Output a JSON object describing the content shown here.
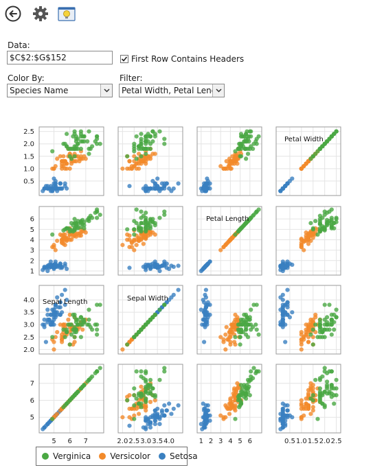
{
  "toolbar": {
    "back_icon": "back-arrow-icon",
    "settings_icon": "gear-icon",
    "insights_icon": "lightbulb-icon"
  },
  "form": {
    "data_label": "Data:",
    "data_value": "$C$2:$G$152",
    "first_row_headers_label": "First Row Contains Headers",
    "first_row_headers_checked": true,
    "color_by_label": "Color By:",
    "color_by_value": "Species Name",
    "filter_label": "Filter:",
    "filter_value": "Petal Width, Petal Length"
  },
  "colors": {
    "Verginica": "#4aa843",
    "Versicolor": "#f28a2a",
    "Setosa": "#3a80c0"
  },
  "chart_data": {
    "type": "scatter",
    "variables": [
      "Sepal Length",
      "Sepal Width",
      "Petal Length",
      "Petal Width"
    ],
    "ranges": {
      "Sepal Length": [
        4.2,
        8.0
      ],
      "Sepal Width": [
        1.9,
        4.5
      ],
      "Petal Length": [
        0.8,
        7.0
      ],
      "Petal Width": [
        0.0,
        2.6
      ]
    },
    "ticks": {
      "Sepal Length": [
        5,
        6,
        7
      ],
      "Sepal Width": [
        2.0,
        2.5,
        3.0,
        3.5,
        4.0
      ],
      "Petal Length": [
        1,
        2,
        3,
        4,
        5,
        6
      ],
      "Petal Width": [
        0.5,
        1.0,
        1.5,
        2.0,
        2.5
      ]
    },
    "tick_labels": {
      "Sepal Length": [
        "5",
        "6",
        "7"
      ],
      "Sepal Width": [
        "2.0",
        "2.5",
        "3.0",
        "3.5",
        "4.0"
      ],
      "Petal Length": [
        "1",
        "2",
        "3",
        "4",
        "5",
        "6"
      ],
      "Petal Width": [
        "0.5",
        "1.0",
        "1.5",
        "2.0",
        "2.5"
      ]
    },
    "grid": true,
    "legend_position": "bottom-left",
    "series": [
      {
        "name": "Verginica",
        "sepal_length": [
          6.3,
          5.8,
          7.1,
          6.3,
          6.5,
          7.6,
          4.9,
          7.3,
          6.7,
          7.2,
          6.5,
          6.4,
          6.8,
          5.7,
          5.8,
          6.4,
          6.5,
          7.7,
          7.7,
          6.0,
          6.9,
          5.6,
          7.7,
          6.3,
          6.7,
          7.2,
          6.2,
          6.1,
          6.4,
          7.2,
          7.4,
          7.9,
          6.4,
          6.3,
          6.1,
          7.7,
          6.3,
          6.4,
          6.0,
          6.9,
          6.7,
          6.9,
          5.8,
          6.8,
          6.7,
          6.7,
          6.3,
          6.5,
          6.2,
          5.9
        ],
        "sepal_width": [
          3.3,
          2.7,
          3.0,
          2.9,
          3.0,
          3.0,
          2.5,
          2.9,
          2.5,
          3.6,
          3.2,
          2.7,
          3.0,
          2.5,
          2.8,
          3.2,
          3.0,
          3.8,
          2.6,
          2.2,
          3.2,
          2.8,
          2.8,
          2.7,
          3.3,
          3.2,
          2.8,
          3.0,
          2.8,
          3.0,
          2.8,
          3.8,
          2.8,
          2.8,
          2.6,
          3.0,
          3.4,
          3.1,
          3.0,
          3.1,
          3.1,
          3.1,
          2.7,
          3.2,
          3.3,
          3.0,
          2.5,
          3.0,
          3.4,
          3.0
        ],
        "petal_length": [
          6.0,
          5.1,
          5.9,
          5.6,
          5.8,
          6.6,
          4.5,
          6.3,
          5.8,
          6.1,
          5.1,
          5.3,
          5.5,
          5.0,
          5.1,
          5.3,
          5.5,
          6.7,
          6.9,
          5.0,
          5.7,
          4.9,
          6.7,
          4.9,
          5.7,
          6.0,
          4.8,
          4.9,
          5.6,
          5.8,
          6.1,
          6.4,
          5.6,
          5.1,
          5.6,
          6.1,
          5.6,
          5.5,
          4.8,
          5.4,
          5.6,
          5.1,
          5.1,
          5.9,
          5.7,
          5.2,
          5.0,
          5.2,
          5.4,
          5.1
        ],
        "petal_width": [
          2.5,
          1.9,
          2.1,
          1.8,
          2.2,
          2.1,
          1.7,
          1.8,
          1.8,
          2.5,
          2.0,
          1.9,
          2.1,
          2.0,
          2.4,
          2.3,
          1.8,
          2.2,
          2.3,
          1.5,
          2.3,
          2.0,
          2.0,
          1.8,
          2.1,
          1.8,
          1.8,
          1.8,
          2.1,
          1.6,
          1.9,
          2.0,
          2.2,
          1.5,
          1.4,
          2.3,
          2.4,
          1.8,
          1.8,
          2.1,
          2.4,
          2.3,
          1.9,
          2.3,
          2.5,
          2.3,
          1.9,
          2.0,
          2.3,
          1.8
        ]
      },
      {
        "name": "Versicolor",
        "sepal_length": [
          7.0,
          6.4,
          6.9,
          5.5,
          6.5,
          5.7,
          6.3,
          4.9,
          6.6,
          5.2,
          5.0,
          5.9,
          6.0,
          6.1,
          5.6,
          6.7,
          5.6,
          5.8,
          6.2,
          5.6,
          5.9,
          6.1,
          6.3,
          6.1,
          6.4,
          6.6,
          6.8,
          6.7,
          6.0,
          5.7,
          5.5,
          5.5,
          5.8,
          6.0,
          5.4,
          6.0,
          6.7,
          6.3,
          5.6,
          5.5,
          5.5,
          6.1,
          5.8,
          5.0,
          5.6,
          5.7,
          5.7,
          6.2,
          5.1,
          5.7
        ],
        "sepal_width": [
          3.2,
          3.2,
          3.1,
          2.3,
          2.8,
          2.8,
          3.3,
          2.4,
          2.9,
          2.7,
          2.0,
          3.0,
          2.2,
          2.9,
          2.9,
          3.1,
          3.0,
          2.7,
          2.2,
          2.5,
          3.2,
          2.8,
          2.5,
          2.8,
          2.9,
          3.0,
          2.8,
          3.0,
          2.9,
          2.6,
          2.4,
          2.4,
          2.7,
          2.7,
          3.0,
          3.4,
          3.1,
          2.3,
          3.0,
          2.5,
          2.6,
          3.0,
          2.6,
          2.3,
          2.7,
          3.0,
          2.9,
          2.9,
          2.5,
          2.8
        ],
        "petal_length": [
          4.7,
          4.5,
          4.9,
          4.0,
          4.6,
          4.5,
          4.7,
          3.3,
          4.6,
          3.9,
          3.5,
          4.2,
          4.0,
          4.7,
          3.6,
          4.4,
          4.5,
          4.1,
          4.5,
          3.9,
          4.8,
          4.0,
          4.9,
          4.7,
          4.3,
          4.4,
          4.8,
          5.0,
          4.5,
          3.5,
          3.8,
          3.7,
          3.9,
          5.1,
          4.5,
          4.5,
          4.7,
          4.4,
          4.1,
          4.0,
          4.4,
          4.6,
          4.0,
          3.3,
          4.2,
          4.2,
          4.2,
          4.3,
          3.0,
          4.1
        ],
        "petal_width": [
          1.4,
          1.5,
          1.5,
          1.3,
          1.5,
          1.3,
          1.6,
          1.0,
          1.3,
          1.4,
          1.0,
          1.5,
          1.0,
          1.4,
          1.3,
          1.4,
          1.5,
          1.0,
          1.5,
          1.1,
          1.8,
          1.3,
          1.5,
          1.2,
          1.3,
          1.4,
          1.4,
          1.7,
          1.5,
          1.0,
          1.1,
          1.0,
          1.2,
          1.6,
          1.5,
          1.6,
          1.5,
          1.3,
          1.3,
          1.3,
          1.2,
          1.4,
          1.2,
          1.0,
          1.3,
          1.2,
          1.3,
          1.3,
          1.1,
          1.3
        ]
      },
      {
        "name": "Setosa",
        "sepal_length": [
          5.1,
          4.9,
          4.7,
          4.6,
          5.0,
          5.4,
          4.6,
          5.0,
          4.4,
          4.9,
          5.4,
          4.8,
          4.8,
          4.3,
          5.8,
          5.7,
          5.4,
          5.1,
          5.7,
          5.1,
          5.4,
          5.1,
          4.6,
          5.1,
          4.8,
          5.0,
          5.0,
          5.2,
          5.2,
          4.7,
          4.8,
          5.4,
          5.2,
          5.5,
          4.9,
          5.0,
          5.5,
          4.9,
          4.4,
          5.1,
          5.0,
          4.5,
          4.4,
          5.0,
          5.1,
          4.8,
          5.1,
          4.6,
          5.3,
          5.0
        ],
        "sepal_width": [
          3.5,
          3.0,
          3.2,
          3.1,
          3.6,
          3.9,
          3.4,
          3.4,
          2.9,
          3.1,
          3.7,
          3.4,
          3.0,
          3.0,
          4.0,
          4.4,
          3.9,
          3.5,
          3.8,
          3.8,
          3.4,
          3.7,
          3.6,
          3.3,
          3.4,
          3.0,
          3.4,
          3.5,
          3.4,
          3.2,
          3.1,
          3.4,
          4.1,
          4.2,
          3.1,
          3.2,
          3.5,
          3.6,
          3.0,
          3.4,
          3.5,
          2.3,
          3.2,
          3.5,
          3.8,
          3.0,
          3.8,
          3.2,
          3.7,
          3.3
        ],
        "petal_length": [
          1.4,
          1.4,
          1.3,
          1.5,
          1.4,
          1.7,
          1.4,
          1.5,
          1.4,
          1.5,
          1.5,
          1.6,
          1.4,
          1.1,
          1.2,
          1.5,
          1.3,
          1.4,
          1.7,
          1.5,
          1.7,
          1.5,
          1.0,
          1.7,
          1.9,
          1.6,
          1.6,
          1.5,
          1.4,
          1.6,
          1.6,
          1.5,
          1.5,
          1.4,
          1.5,
          1.2,
          1.3,
          1.4,
          1.3,
          1.5,
          1.3,
          1.3,
          1.3,
          1.6,
          1.9,
          1.4,
          1.6,
          1.4,
          1.5,
          1.4
        ],
        "petal_width": [
          0.2,
          0.2,
          0.2,
          0.2,
          0.2,
          0.4,
          0.3,
          0.2,
          0.2,
          0.1,
          0.2,
          0.2,
          0.1,
          0.1,
          0.2,
          0.4,
          0.4,
          0.3,
          0.3,
          0.3,
          0.2,
          0.4,
          0.2,
          0.5,
          0.2,
          0.2,
          0.4,
          0.2,
          0.2,
          0.2,
          0.2,
          0.4,
          0.1,
          0.2,
          0.2,
          0.2,
          0.2,
          0.1,
          0.2,
          0.2,
          0.3,
          0.3,
          0.2,
          0.6,
          0.4,
          0.3,
          0.2,
          0.2,
          0.2,
          0.2
        ]
      }
    ]
  },
  "legend": {
    "items": [
      "Verginica",
      "Versicolor",
      "Setosa"
    ]
  }
}
